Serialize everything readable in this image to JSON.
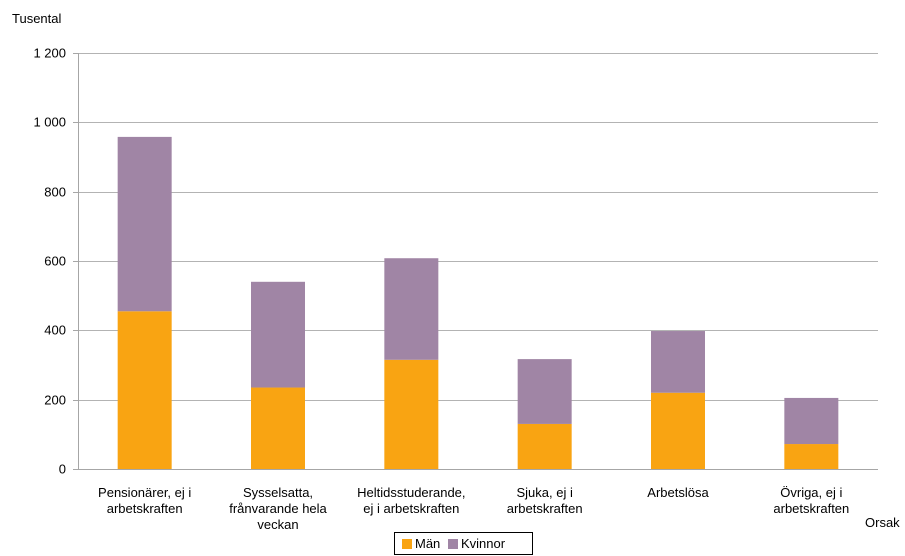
{
  "chart_data": {
    "type": "bar",
    "stacked": true,
    "title": "",
    "ylabel": "Tusental",
    "xlabel": "Orsak",
    "ylim": [
      0,
      1200
    ],
    "yticks": [
      0,
      200,
      400,
      600,
      800,
      1000,
      1200
    ],
    "ytick_labels": [
      "0",
      "200",
      "400",
      "600",
      "800",
      "1 000",
      "1 200"
    ],
    "grid": true,
    "legend_position": "bottom",
    "categories": [
      [
        "Pensionärer, ej i",
        "arbetskraften"
      ],
      [
        "Sysselsatta,",
        "frånvarande hela",
        "veckan"
      ],
      [
        "Heltidsstuderande,",
        "ej i arbetskraften"
      ],
      [
        "Sjuka, ej i",
        "arbetskraften"
      ],
      [
        "Arbetslösa"
      ],
      [
        "Övriga, ej i",
        "arbetskraften"
      ]
    ],
    "series": [
      {
        "name": "Män",
        "color": "#F9A412",
        "values": [
          455,
          235,
          315,
          130,
          220,
          72
        ]
      },
      {
        "name": "Kvinnor",
        "color": "#A085A5",
        "values": [
          503,
          305,
          293,
          187,
          178,
          133
        ]
      }
    ]
  }
}
